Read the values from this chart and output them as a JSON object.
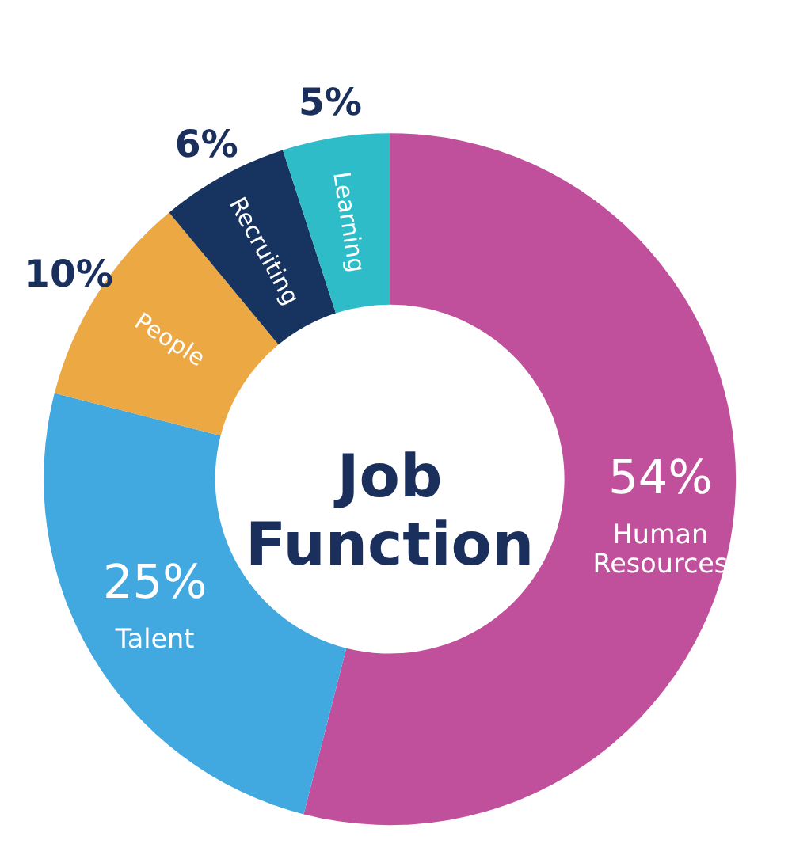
{
  "chart_data": {
    "type": "donut",
    "title": "Job Function",
    "categories": [
      "Human Resources",
      "Talent",
      "People",
      "Recruiting",
      "Learning"
    ],
    "values": [
      54,
      25,
      10,
      6,
      5
    ],
    "value_labels": [
      "54%",
      "25%",
      "10%",
      "6%",
      "5%"
    ],
    "colors": [
      "#c0509b",
      "#42a8e0",
      "#eca843",
      "#17335f",
      "#2fbcc9"
    ],
    "legend": false
  }
}
